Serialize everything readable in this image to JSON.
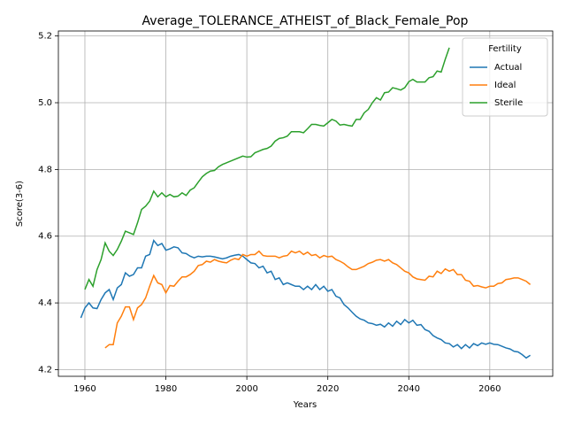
{
  "chart_data": {
    "type": "line",
    "title": "Average_TOLERANCE_ATHEIST_of_Black_Female_Pop",
    "xlabel": "Years",
    "ylabel": "Score(3-6)",
    "legend_title": "Fertility",
    "legend_loc": "upper right",
    "grid": true,
    "x": [
      1959,
      1960,
      1961,
      1962,
      1963,
      1964,
      1965,
      1966,
      1967,
      1968,
      1969,
      1970,
      1971,
      1972,
      1973,
      1974,
      1975,
      1976,
      1977,
      1978,
      1979,
      1980,
      1981,
      1982,
      1983,
      1984,
      1985,
      1986,
      1987,
      1988,
      1989,
      1990,
      1991,
      1992,
      1993,
      1994,
      1995,
      1996,
      1997,
      1998,
      1999,
      2000,
      2001,
      2002,
      2003,
      2004,
      2005,
      2006,
      2007,
      2008,
      2009,
      2010,
      2011,
      2012,
      2013,
      2014,
      2015,
      2016,
      2017,
      2018,
      2019,
      2020,
      2021,
      2022,
      2023,
      2024,
      2025,
      2026,
      2027,
      2028,
      2029,
      2030,
      2031,
      2032,
      2033,
      2034,
      2035,
      2036,
      2037,
      2038,
      2039,
      2040,
      2041,
      2042,
      2043,
      2044,
      2045,
      2046,
      2047,
      2048,
      2049,
      2050,
      2051,
      2052,
      2053,
      2054,
      2055,
      2056,
      2057,
      2058,
      2059,
      2060,
      2061,
      2062,
      2063,
      2064,
      2065,
      2066,
      2067,
      2068,
      2069,
      2070
    ],
    "series": [
      {
        "name": "Actual",
        "color": "#1f77b4",
        "values": [
          4.355,
          4.385,
          4.4,
          4.385,
          4.383,
          4.41,
          4.43,
          4.44,
          4.41,
          4.445,
          4.455,
          4.49,
          4.48,
          4.485,
          4.505,
          4.505,
          4.54,
          4.545,
          4.587,
          4.572,
          4.578,
          4.558,
          4.562,
          4.568,
          4.565,
          4.55,
          4.548,
          4.54,
          4.535,
          4.54,
          4.538,
          4.54,
          4.54,
          4.538,
          4.535,
          4.532,
          4.535,
          4.54,
          4.543,
          4.545,
          4.54,
          4.53,
          4.52,
          4.518,
          4.505,
          4.51,
          4.49,
          4.495,
          4.47,
          4.475,
          4.455,
          4.46,
          4.455,
          4.45,
          4.45,
          4.44,
          4.45,
          4.44,
          4.455,
          4.44,
          4.45,
          4.435,
          4.44,
          4.42,
          4.415,
          4.395,
          4.385,
          4.372,
          4.36,
          4.352,
          4.348,
          4.34,
          4.338,
          4.333,
          4.336,
          4.328,
          4.34,
          4.33,
          4.345,
          4.335,
          4.35,
          4.34,
          4.348,
          4.333,
          4.335,
          4.32,
          4.315,
          4.302,
          4.295,
          4.29,
          4.28,
          4.278,
          4.268,
          4.275,
          4.263,
          4.275,
          4.265,
          4.278,
          4.272,
          4.28,
          4.276,
          4.28,
          4.276,
          4.275,
          4.27,
          4.265,
          4.262,
          4.255,
          4.253,
          4.245,
          4.235,
          4.243
        ]
      },
      {
        "name": "Ideal",
        "color": "#ff7f0e",
        "values": [
          null,
          null,
          null,
          null,
          null,
          null,
          4.265,
          4.275,
          4.275,
          4.34,
          4.36,
          4.388,
          4.388,
          4.35,
          4.385,
          4.395,
          4.415,
          4.45,
          4.482,
          4.46,
          4.455,
          4.43,
          4.452,
          4.45,
          4.465,
          4.478,
          4.478,
          4.485,
          4.495,
          4.512,
          4.515,
          4.525,
          4.522,
          4.53,
          4.525,
          4.522,
          4.52,
          4.528,
          4.533,
          4.53,
          4.545,
          4.54,
          4.545,
          4.545,
          4.555,
          4.542,
          4.54,
          4.54,
          4.54,
          4.535,
          4.54,
          4.542,
          4.555,
          4.55,
          4.555,
          4.545,
          4.552,
          4.542,
          4.545,
          4.535,
          4.542,
          4.538,
          4.54,
          4.53,
          4.525,
          4.518,
          4.508,
          4.5,
          4.5,
          4.505,
          4.51,
          4.518,
          4.522,
          4.528,
          4.53,
          4.525,
          4.53,
          4.52,
          4.515,
          4.505,
          4.495,
          4.49,
          4.478,
          4.472,
          4.47,
          4.468,
          4.48,
          4.478,
          4.495,
          4.488,
          4.502,
          4.495,
          4.5,
          4.485,
          4.485,
          4.468,
          4.465,
          4.45,
          4.452,
          4.448,
          4.445,
          4.45,
          4.45,
          4.458,
          4.46,
          4.47,
          4.472,
          4.475,
          4.475,
          4.47,
          4.465,
          4.455
        ]
      },
      {
        "name": "Sterile",
        "color": "#2ca02c",
        "values": [
          null,
          4.44,
          4.47,
          4.45,
          4.5,
          4.53,
          4.58,
          4.555,
          4.542,
          4.56,
          4.585,
          4.615,
          4.61,
          4.605,
          4.64,
          4.68,
          4.69,
          4.705,
          4.735,
          4.718,
          4.73,
          4.718,
          4.725,
          4.718,
          4.72,
          4.73,
          4.722,
          4.738,
          4.745,
          4.762,
          4.778,
          4.788,
          4.795,
          4.797,
          4.808,
          4.815,
          4.82,
          4.825,
          4.83,
          4.835,
          4.84,
          4.837,
          4.838,
          4.85,
          4.855,
          4.86,
          4.863,
          4.87,
          4.885,
          4.893,
          4.895,
          4.9,
          4.913,
          4.913,
          4.913,
          4.91,
          4.922,
          4.935,
          4.935,
          4.932,
          4.93,
          4.94,
          4.95,
          4.945,
          4.933,
          4.935,
          4.932,
          4.93,
          4.95,
          4.95,
          4.97,
          4.98,
          5.0,
          5.015,
          5.008,
          5.03,
          5.032,
          5.045,
          5.042,
          5.038,
          5.045,
          5.063,
          5.07,
          5.062,
          5.062,
          5.062,
          5.075,
          5.078,
          5.095,
          5.092,
          5.13,
          5.165,
          null,
          null,
          null,
          null,
          null,
          null,
          null,
          null,
          null,
          null,
          null,
          null,
          null,
          null,
          null,
          null,
          null,
          null,
          null,
          null
        ]
      }
    ],
    "xlim": [
      1953.45,
      2075.55
    ],
    "xticks": [
      1960,
      1980,
      2000,
      2020,
      2040,
      2060
    ],
    "ylim": [
      4.18,
      5.215
    ],
    "yticks": [
      4.2,
      4.4,
      4.6,
      4.8,
      {
        "value": 5,
        "label": "5.0"
      },
      5.2
    ]
  }
}
